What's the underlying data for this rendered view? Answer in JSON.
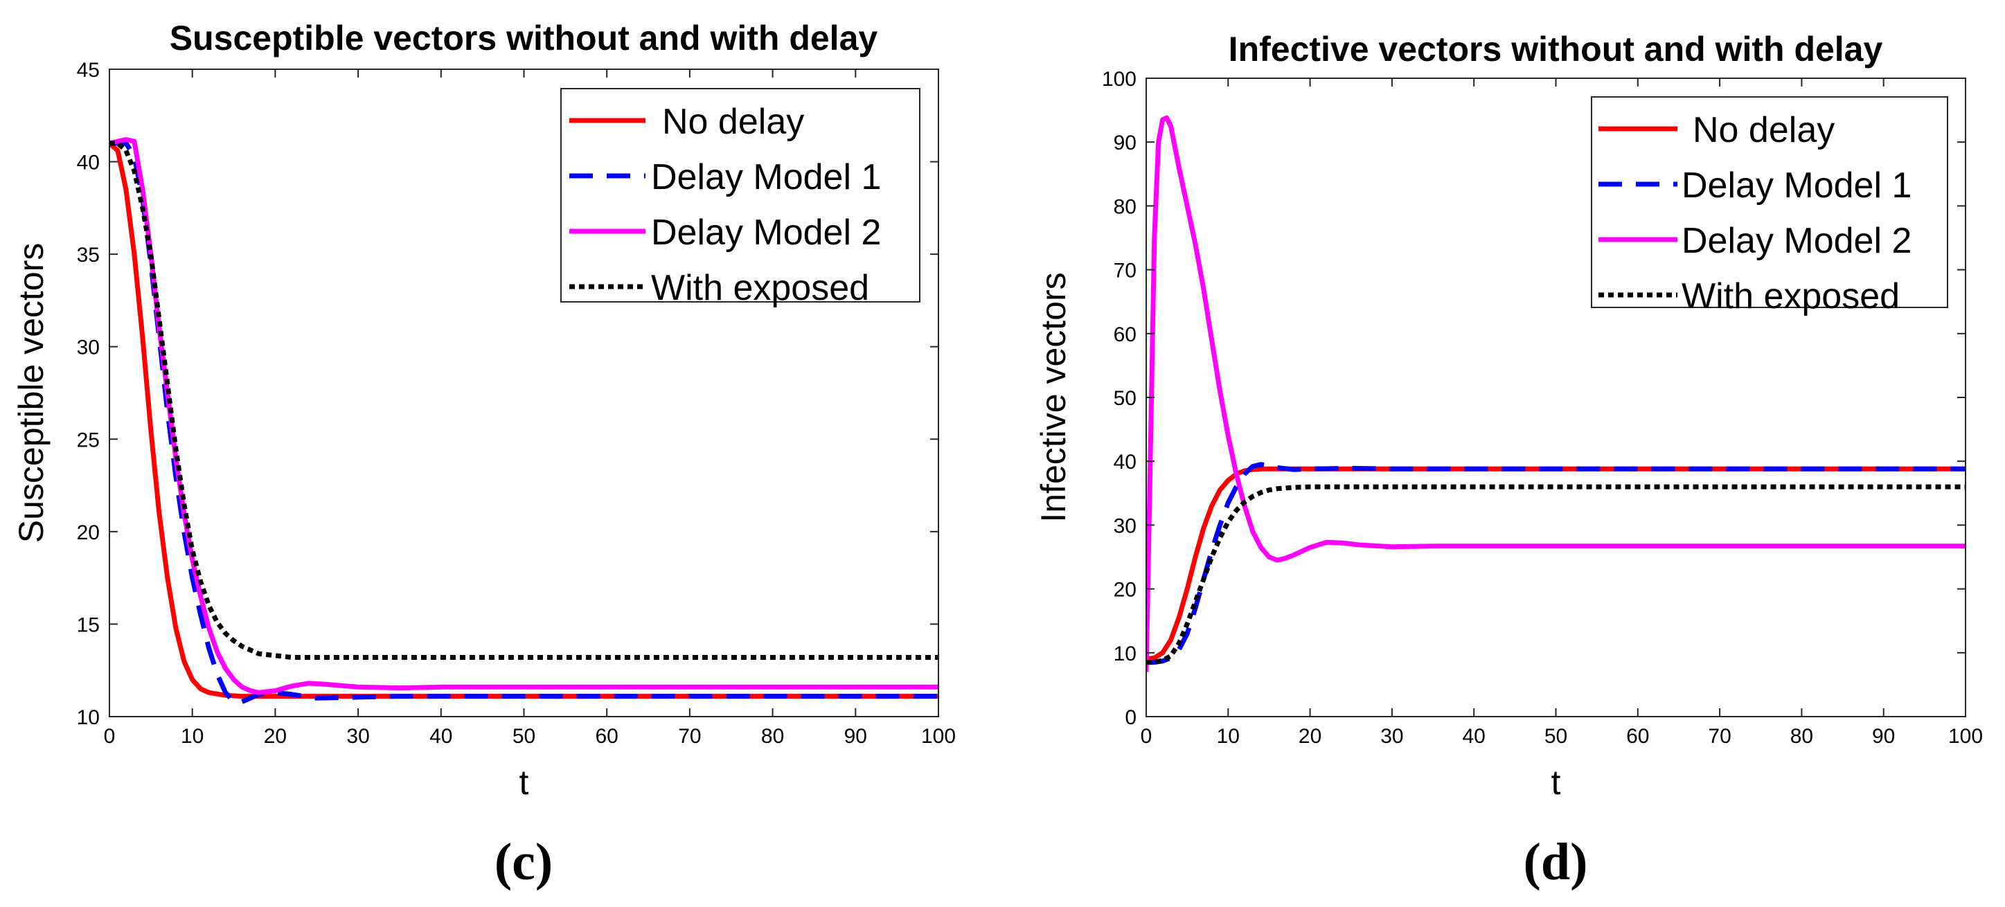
{
  "chart_data": [
    {
      "type": "line",
      "panel_label": "(c)",
      "title": "Susceptible vectors without and with delay",
      "xlabel": "t",
      "ylabel": "Susceptible vectors",
      "xlim": [
        0,
        100
      ],
      "ylim": [
        10,
        45
      ],
      "xticks": [
        0,
        10,
        20,
        30,
        40,
        50,
        60,
        70,
        80,
        90,
        100
      ],
      "yticks": [
        10,
        15,
        20,
        25,
        30,
        35,
        40,
        45
      ],
      "legend_position": "top-right",
      "series": [
        {
          "name": "No delay",
          "color": "#ff0000",
          "style": "solid",
          "x": [
            0,
            1,
            2,
            3,
            4,
            5,
            6,
            7,
            8,
            9,
            10,
            11,
            12,
            14,
            16,
            18,
            20,
            25,
            30,
            40,
            60,
            80,
            100
          ],
          "y": [
            41,
            40.6,
            38.5,
            35,
            30.5,
            25.5,
            21,
            17.5,
            14.8,
            13,
            12,
            11.5,
            11.3,
            11.15,
            11.1,
            11.1,
            11.1,
            11.1,
            11.1,
            11.1,
            11.1,
            11.1,
            11.1
          ]
        },
        {
          "name": "Delay Model 1",
          "color": "#0000ff",
          "style": "dashed",
          "x": [
            0,
            1,
            2,
            3,
            4,
            5,
            6,
            7,
            8,
            9,
            10,
            11,
            12,
            13,
            14,
            15,
            16,
            17,
            18,
            20,
            22,
            25,
            30,
            35,
            40,
            60,
            80,
            100
          ],
          "y": [
            41,
            41,
            41,
            40.3,
            38,
            34.5,
            30.5,
            26.5,
            23,
            20,
            17.5,
            15.5,
            13.7,
            12.3,
            11.3,
            10.8,
            10.8,
            11,
            11.2,
            11.3,
            11.2,
            11.0,
            11.05,
            11.1,
            11.1,
            11.1,
            11.1,
            11.1
          ]
        },
        {
          "name": "Delay Model 2",
          "color": "#ff00ff",
          "style": "solid",
          "x": [
            0,
            1,
            2,
            3,
            4,
            5,
            6,
            7,
            8,
            9,
            10,
            11,
            12,
            13,
            14,
            15,
            16,
            17,
            18,
            20,
            22,
            24,
            26,
            30,
            35,
            40,
            60,
            80,
            100
          ],
          "y": [
            41,
            41.1,
            41.2,
            41.1,
            38.5,
            35,
            31,
            27.5,
            24,
            21,
            18.5,
            16.5,
            14.8,
            13.5,
            12.6,
            12,
            11.6,
            11.4,
            11.3,
            11.4,
            11.65,
            11.8,
            11.75,
            11.6,
            11.55,
            11.6,
            11.6,
            11.6,
            11.6
          ]
        },
        {
          "name": "With exposed",
          "color": "#000000",
          "style": "dotted",
          "x": [
            0,
            1,
            2,
            3,
            4,
            5,
            6,
            7,
            8,
            9,
            10,
            11,
            12,
            13,
            14,
            15,
            16,
            17,
            18,
            20,
            22,
            25,
            30,
            40,
            60,
            80,
            100
          ],
          "y": [
            41,
            41,
            40.6,
            39.5,
            37.5,
            35,
            31.5,
            28,
            24.5,
            21.5,
            19,
            17.3,
            16,
            15.1,
            14.5,
            14.1,
            13.8,
            13.6,
            13.4,
            13.3,
            13.2,
            13.2,
            13.2,
            13.2,
            13.2,
            13.2,
            13.2
          ]
        }
      ]
    },
    {
      "type": "line",
      "panel_label": "(d)",
      "title": "Infective vectors without and with delay",
      "xlabel": "t",
      "ylabel": "Infective vectors",
      "xlim": [
        0,
        100
      ],
      "ylim": [
        0,
        100
      ],
      "xticks": [
        0,
        10,
        20,
        30,
        40,
        50,
        60,
        70,
        80,
        90,
        100
      ],
      "yticks": [
        0,
        10,
        20,
        30,
        40,
        50,
        60,
        70,
        80,
        90,
        100
      ],
      "legend_position": "top-right",
      "series": [
        {
          "name": "No delay",
          "color": "#ff0000",
          "style": "solid",
          "x": [
            0,
            1,
            2,
            3,
            4,
            5,
            6,
            7,
            8,
            9,
            10,
            11,
            12,
            13,
            14,
            16,
            18,
            20,
            30,
            40,
            60,
            80,
            100
          ],
          "y": [
            9,
            9.2,
            10,
            12,
            15.5,
            20,
            25,
            29.5,
            33,
            35.5,
            37,
            38,
            38.5,
            38.7,
            38.8,
            38.8,
            38.8,
            38.8,
            38.8,
            38.8,
            38.8,
            38.8,
            38.8
          ]
        },
        {
          "name": "Delay Model 1",
          "color": "#0000ff",
          "style": "dashed",
          "x": [
            0,
            1,
            2,
            3,
            4,
            5,
            6,
            7,
            8,
            9,
            10,
            11,
            12,
            13,
            14,
            15,
            16,
            18,
            20,
            25,
            30,
            40,
            60,
            80,
            100
          ],
          "y": [
            8.5,
            8.5,
            8.7,
            9.2,
            10.5,
            13,
            17,
            21.5,
            26,
            30,
            33.5,
            36,
            38,
            39.2,
            39.5,
            39.3,
            39,
            38.7,
            38.8,
            38.9,
            38.8,
            38.8,
            38.8,
            38.8,
            38.8
          ]
        },
        {
          "name": "Delay Model 2",
          "color": "#ff00ff",
          "style": "solid",
          "x": [
            0,
            0.5,
            1,
            1.5,
            2,
            2.5,
            3,
            4,
            5,
            6,
            7,
            8,
            9,
            10,
            11,
            12,
            13,
            14,
            15,
            16,
            17,
            18,
            20,
            22,
            24,
            26,
            30,
            35,
            40,
            60,
            80,
            100
          ],
          "y": [
            7,
            40,
            75,
            90,
            93.5,
            93.8,
            92.5,
            86,
            80,
            74,
            67,
            59,
            51,
            44,
            38,
            33,
            29,
            26.5,
            25,
            24.5,
            24.8,
            25.3,
            26.5,
            27.3,
            27.2,
            26.9,
            26.6,
            26.7,
            26.7,
            26.7,
            26.7,
            26.7
          ]
        },
        {
          "name": "With exposed",
          "color": "#000000",
          "style": "dotted",
          "x": [
            0,
            1,
            2,
            3,
            4,
            5,
            6,
            7,
            8,
            9,
            10,
            11,
            12,
            13,
            14,
            15,
            16,
            18,
            20,
            25,
            30,
            40,
            60,
            80,
            100
          ],
          "y": [
            8.5,
            8.5,
            8.8,
            9.5,
            11.5,
            14.5,
            18,
            21.5,
            25,
            28,
            30.5,
            32.3,
            33.6,
            34.5,
            35.1,
            35.5,
            35.7,
            35.9,
            36,
            36,
            36,
            36,
            36,
            36,
            36
          ]
        }
      ]
    }
  ]
}
